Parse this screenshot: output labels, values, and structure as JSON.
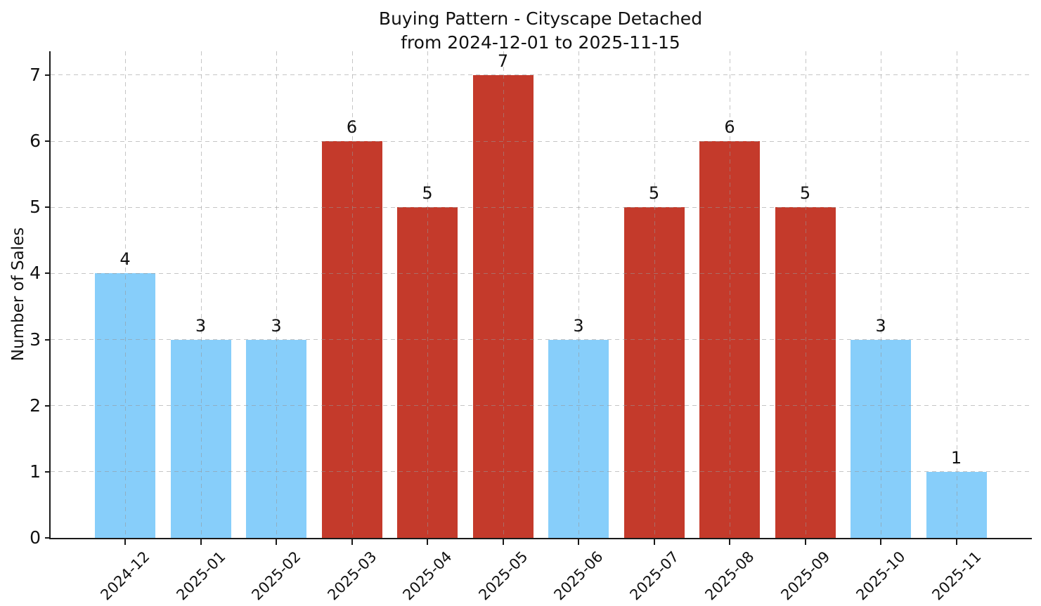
{
  "chart": {
    "title_line1": "Buying Pattern - Cityscape Detached",
    "title_line2": "from 2024-12-01 to 2025-11-15"
  },
  "chart_data": {
    "type": "bar",
    "title": "Buying Pattern - Cityscape Detached\nfrom 2024-12-01 to 2025-11-15",
    "xlabel": "",
    "ylabel": "Number of Sales",
    "categories": [
      "2024-12",
      "2025-01",
      "2025-02",
      "2025-03",
      "2025-04",
      "2025-05",
      "2025-06",
      "2025-07",
      "2025-08",
      "2025-09",
      "2025-10",
      "2025-11"
    ],
    "values": [
      4,
      3,
      3,
      6,
      5,
      7,
      3,
      5,
      6,
      5,
      3,
      1
    ],
    "value_labels": [
      "4",
      "3",
      "3",
      "6",
      "5",
      "7",
      "3",
      "5",
      "6",
      "5",
      "3",
      "1"
    ],
    "bar_colors": [
      "#87CEFA",
      "#87CEFA",
      "#87CEFA",
      "#C43A2B",
      "#C43A2B",
      "#C43A2B",
      "#87CEFA",
      "#C43A2B",
      "#C43A2B",
      "#C43A2B",
      "#87CEFA",
      "#87CEFA"
    ],
    "accent_colors": {
      "blue_bar": "#87CEFA",
      "red_bar": "#C43A2B"
    },
    "yticks": [
      0,
      1,
      2,
      3,
      4,
      5,
      6,
      7
    ],
    "ylim": [
      0,
      7.36
    ],
    "grid": "dashed gridlines on both axes, drawn over bars",
    "legend_position": "none",
    "x_tick_rotation_deg": 45
  }
}
